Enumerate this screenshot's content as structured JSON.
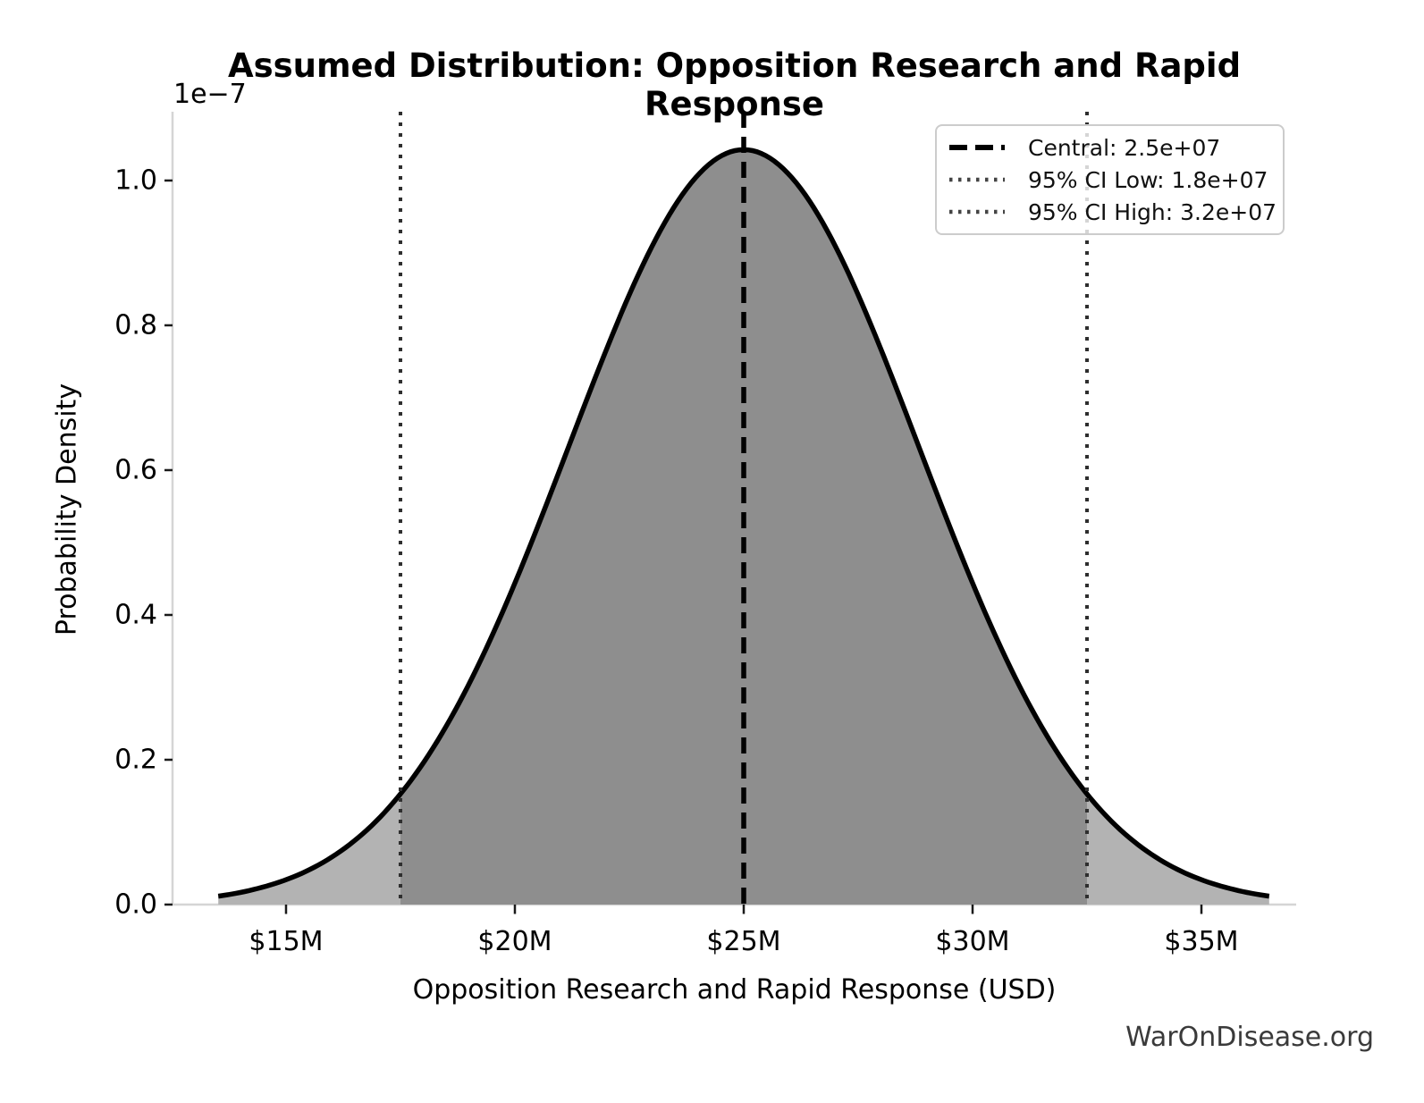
{
  "title": "Assumed Distribution: Opposition Research and Rapid Response",
  "watermark": "WarOnDisease.org",
  "chart_data": {
    "type": "area",
    "title": "Assumed Distribution: Opposition Research and Rapid Response",
    "xlabel": "Opposition Research and Rapid Response (USD)",
    "ylabel": "Probability Density",
    "y_offset_label": "1e−7",
    "distribution": {
      "family": "normal",
      "mean": 25000000,
      "sigma": 3826531,
      "peak_density": 1.042e-07,
      "curve_extent_sigmas": 3
    },
    "x_axis": {
      "range": [
        12520000,
        37070000
      ],
      "ticks": [
        {
          "value": 15000000,
          "label": "$15M"
        },
        {
          "value": 20000000,
          "label": "$20M"
        },
        {
          "value": 25000000,
          "label": "$25M"
        },
        {
          "value": 30000000,
          "label": "$30M"
        },
        {
          "value": 35000000,
          "label": "$35M"
        }
      ]
    },
    "y_axis": {
      "range_1e7": [
        0,
        1.095
      ],
      "ticks": [
        {
          "value": 0.0,
          "label": "0.0"
        },
        {
          "value": 0.2,
          "label": "0.2"
        },
        {
          "value": 0.4,
          "label": "0.4"
        },
        {
          "value": 0.6,
          "label": "0.6"
        },
        {
          "value": 0.8,
          "label": "0.8"
        },
        {
          "value": 1.0,
          "label": "1.0"
        }
      ]
    },
    "lines": [
      {
        "name": "central",
        "value": 25000000,
        "style": "dashed",
        "legend": "Central: 2.5e+07"
      },
      {
        "name": "ci-low",
        "value": 17500000,
        "style": "dotted",
        "legend": "95% CI Low: 1.8e+07"
      },
      {
        "name": "ci-high",
        "value": 32500000,
        "style": "dotted",
        "legend": "95% CI High: 3.2e+07"
      }
    ],
    "ci_region": {
      "low": 17500000,
      "high": 32500000
    },
    "legend_position": "upper right",
    "grid": false,
    "colors": {
      "curve": "#000000",
      "fill_tail": "#b3b3b3",
      "fill_ci": "#8e8e8e",
      "central_line": "#000000",
      "ci_line": "#2e2e2e",
      "spine": "#d5d5d5",
      "tick": "#1a1a1a",
      "text": "#000000",
      "watermark": "#3a3a3a",
      "legend_border": "#cccccc"
    }
  }
}
